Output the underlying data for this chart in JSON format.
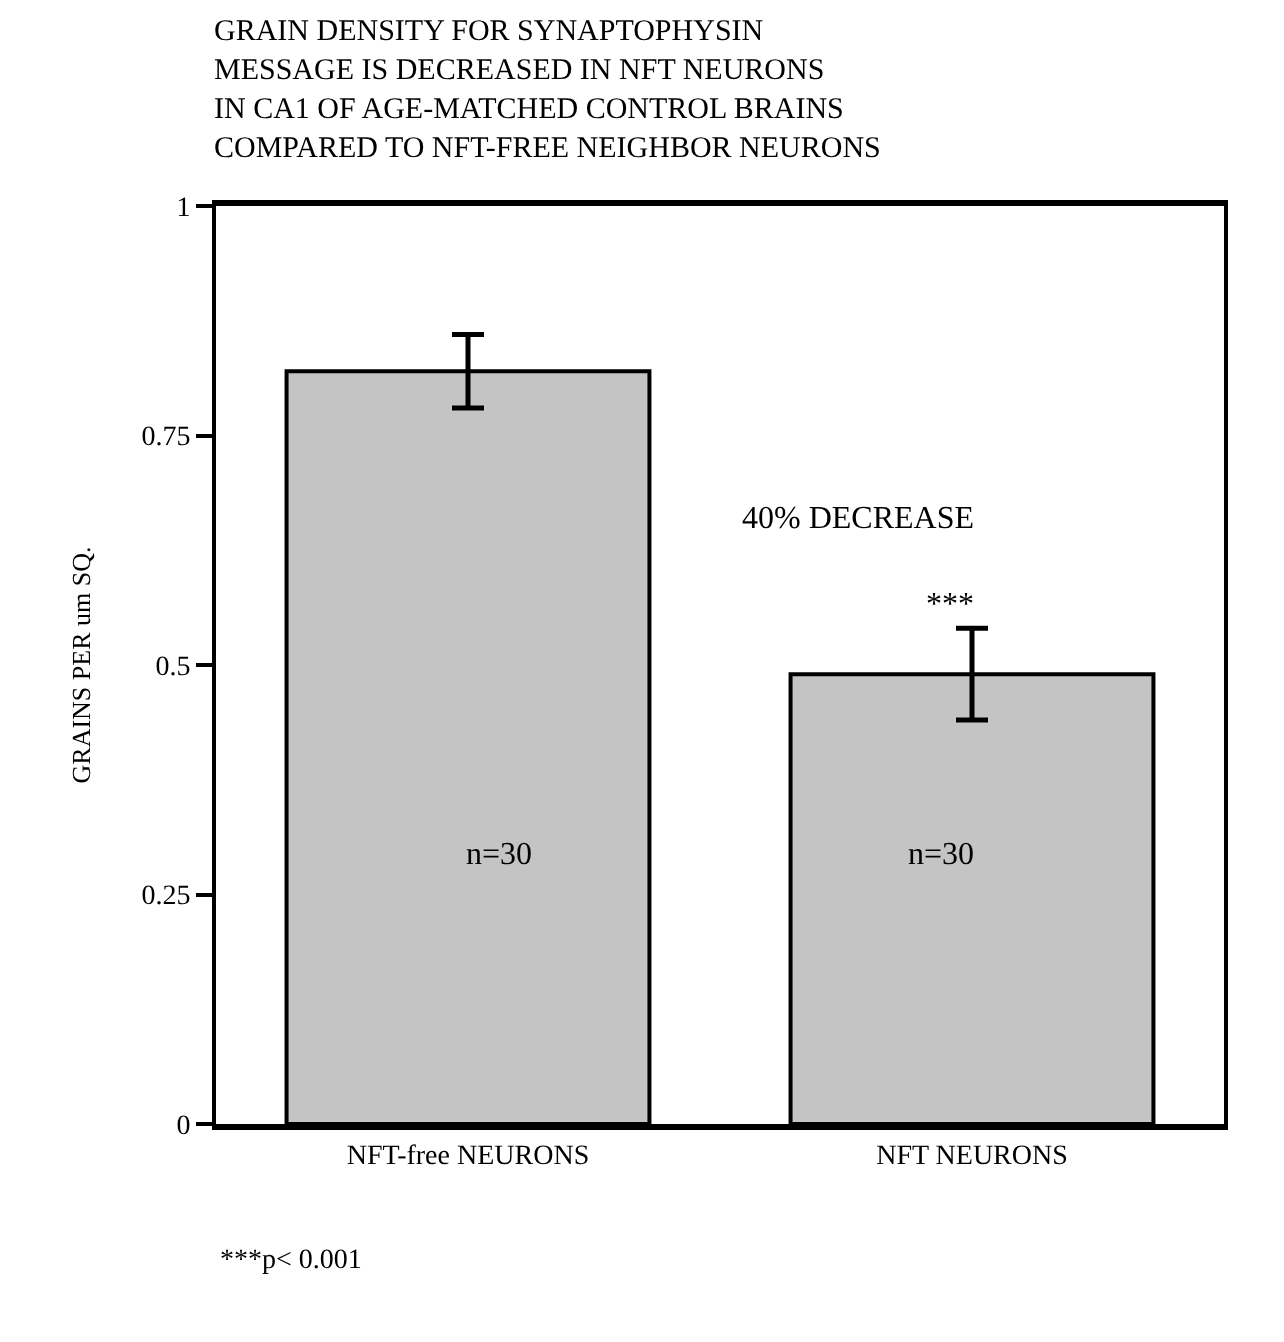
{
  "chart_data": {
    "type": "bar",
    "title": "GRAIN DENSITY FOR SYNAPTOPHYSIN\nMESSAGE IS DECREASED IN NFT NEURONS\nIN CA1 OF AGE-MATCHED CONTROL BRAINS\nCOMPARED TO NFT-FREE NEIGHBOR NEURONS",
    "ylabel": "GRAINS PER um SQ.",
    "categories": [
      "NFT-free NEURONS",
      "NFT NEURONS"
    ],
    "values": [
      0.82,
      0.49
    ],
    "errors": [
      0.04,
      0.05
    ],
    "color": "#c4c4c4",
    "ylim": [
      0,
      1
    ],
    "yticks": [
      0,
      0.25,
      0.5,
      0.75,
      1
    ],
    "grid": false,
    "legend": false,
    "annotations": [
      "n=30",
      "n=30",
      "40% DECREASE",
      "***",
      "***p< 0.001"
    ]
  }
}
